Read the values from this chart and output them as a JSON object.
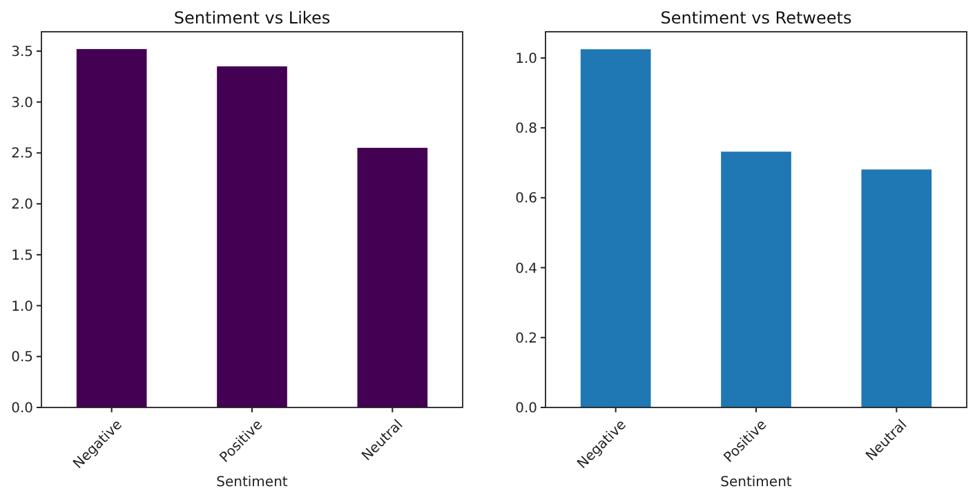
{
  "chart_data": [
    {
      "type": "bar",
      "title": "Sentiment vs Likes",
      "xlabel": "Sentiment",
      "categories": [
        "Negative",
        "Positive",
        "Neutral"
      ],
      "values": [
        3.52,
        3.35,
        2.55
      ],
      "color": "#440154",
      "ylim": [
        0,
        3.69
      ],
      "yticks": [
        {
          "value": 0,
          "label": "0.0"
        },
        0.5,
        {
          "value": 1,
          "label": "1.0"
        },
        1.5,
        {
          "value": 2,
          "label": "2.0"
        },
        2.5,
        {
          "value": 3,
          "label": "3.0"
        },
        3.5
      ],
      "grid": false
    },
    {
      "type": "bar",
      "title": "Sentiment vs Retweets",
      "xlabel": "Sentiment",
      "categories": [
        "Negative",
        "Positive",
        "Neutral"
      ],
      "values": [
        1.025,
        0.732,
        0.681
      ],
      "color": "#1f77b4",
      "ylim": [
        0,
        1.075
      ],
      "yticks": [
        {
          "value": 0,
          "label": "0.0"
        },
        0.2,
        0.4,
        0.6,
        0.8,
        {
          "value": 1,
          "label": "1.0"
        }
      ],
      "grid": false
    }
  ]
}
